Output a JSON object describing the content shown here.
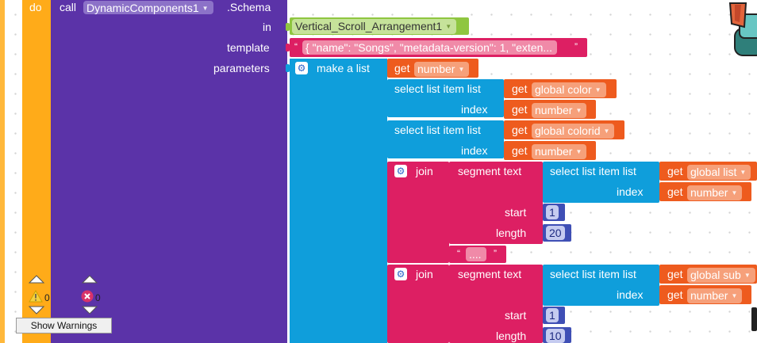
{
  "do_label": "do",
  "call_block": {
    "call_label": "call",
    "component": "DynamicComponents1",
    "method": ".Schema",
    "in_label": "in",
    "in_value": "Vertical_Scroll_Arrangement1",
    "template_label": "template",
    "template_value": "{ \"name\": \"Songs\", \"metadata-version\": 1, \"exten...",
    "parameters_label": "parameters"
  },
  "make_list_label": "make a list",
  "get_label": "get",
  "var_number": "number",
  "select_list_item_label": "select list item  list",
  "index_label": "index",
  "var_global_color": "global color",
  "var_global_colorid": "global colorid",
  "join_label": "join",
  "segment_text_label": "segment  text",
  "var_global_list": "global list",
  "var_global_sub": "global sub",
  "start_label": "start",
  "length_label": "length",
  "start_value_1": "1",
  "length_value_1": "20",
  "ellipsis_text": "....",
  "start_value_2": "1",
  "length_value_2": "10",
  "warnings": {
    "warning_count": "0",
    "error_count": "0",
    "show_warnings_label": "Show Warnings"
  },
  "colors": {
    "event_orange": "#ffab19",
    "component_purple": "#5b33a8",
    "list_blue": "#0f9edb",
    "text_magenta": "#dd1f63",
    "variable_orange": "#ee5b1e",
    "math_indigo": "#3f4fb5",
    "component_green": "#8fc640"
  }
}
